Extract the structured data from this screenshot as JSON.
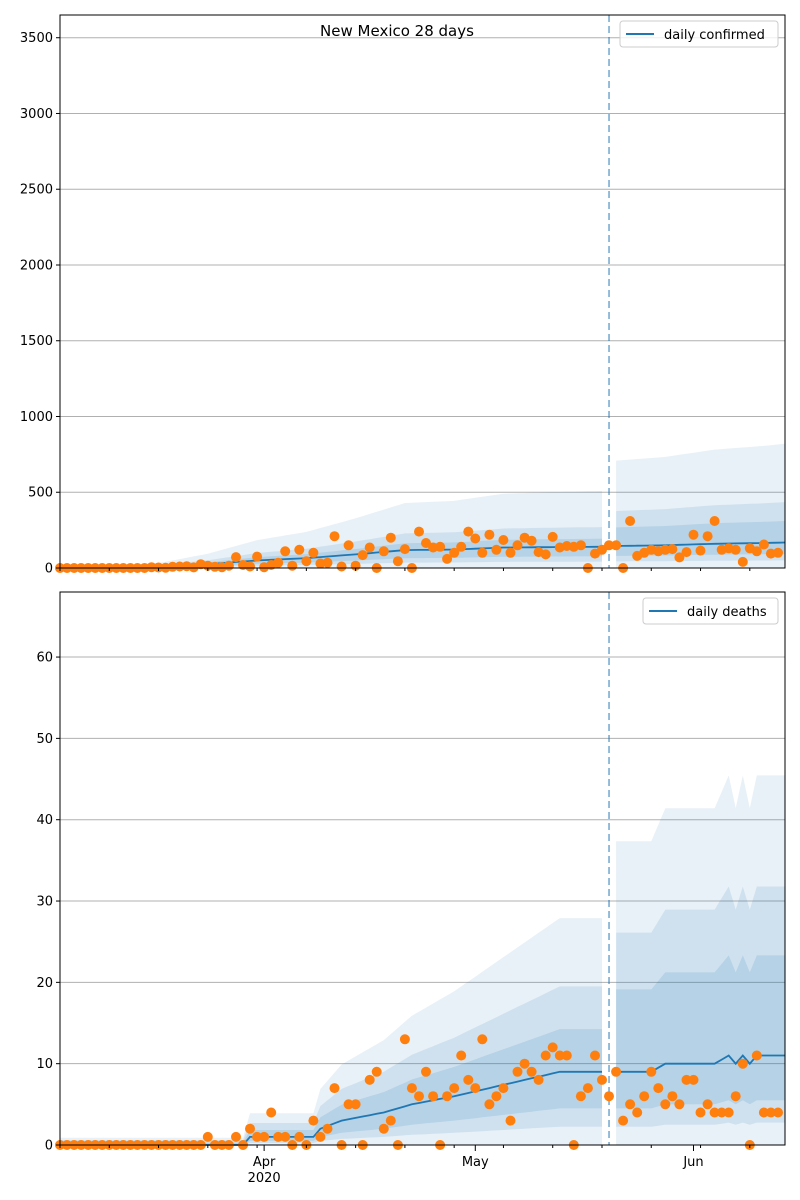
{
  "chart_data": [
    {
      "type": "line",
      "title": "New Mexico 28 days",
      "xlabel": "",
      "ylabel": "",
      "x_range": [
        "2020-03-03",
        "2020-06-14"
      ],
      "ylim": [
        0,
        3650
      ],
      "yticks": [
        0,
        500,
        1000,
        1500,
        2000,
        2500,
        3000,
        3500
      ],
      "grid": "horizontal",
      "legend_position": "top-right",
      "forecast_start": "2020-05-20",
      "series": [
        {
          "name": "daily confirmed",
          "kind": "line",
          "color": "#1f77b4",
          "keys": [
            [
              "2020-03-03",
              0
            ],
            [
              "2020-03-10",
              2
            ],
            [
              "2020-03-17",
              8
            ],
            [
              "2020-03-24",
              25
            ],
            [
              "2020-03-31",
              50
            ],
            [
              "2020-04-07",
              65
            ],
            [
              "2020-04-14",
              90
            ],
            [
              "2020-04-21",
              118
            ],
            [
              "2020-04-28",
              122
            ],
            [
              "2020-05-05",
              135
            ],
            [
              "2020-05-12",
              138
            ],
            [
              "2020-05-19",
              140
            ],
            [
              "2020-05-20",
              140
            ],
            [
              "2020-05-21",
              145
            ],
            [
              "2020-05-28",
              150
            ],
            [
              "2020-06-04",
              160
            ],
            [
              "2020-06-11",
              165
            ],
            [
              "2020-06-14",
              168
            ]
          ]
        },
        {
          "name": "",
          "kind": "scatter",
          "color": "#ff7f0e",
          "start": "2020-03-03",
          "values": [
            0,
            0,
            0,
            0,
            0,
            0,
            0,
            0,
            0,
            0,
            0,
            0,
            0,
            5,
            3,
            2,
            8,
            10,
            12,
            4,
            25,
            15,
            8,
            5,
            15,
            72,
            20,
            10,
            75,
            5,
            20,
            35,
            110,
            15,
            120,
            45,
            100,
            30,
            35,
            210,
            10,
            150,
            15,
            85,
            135,
            0,
            110,
            200,
            45,
            125,
            0,
            240,
            165,
            135,
            140,
            60,
            100,
            140,
            240,
            195,
            100,
            220,
            120,
            185,
            100,
            150,
            200,
            180,
            105,
            90,
            205,
            135,
            145,
            140,
            150,
            0,
            95,
            120,
            150,
            150,
            0,
            310,
            80,
            100,
            120,
            110,
            120,
            125,
            70,
            105,
            220,
            115,
            210,
            310,
            120,
            130,
            120,
            40,
            130,
            110,
            155,
            95,
            100
          ]
        }
      ]
    },
    {
      "type": "line",
      "title": "",
      "xlabel": "",
      "ylabel": "",
      "x_range": [
        "2020-03-03",
        "2020-06-14"
      ],
      "ylim": [
        0,
        68
      ],
      "yticks": [
        0,
        10,
        20,
        30,
        40,
        50,
        60
      ],
      "xticks": [
        {
          "date": "2020-04-01",
          "label": "Apr",
          "sublabel": "2020"
        },
        {
          "date": "2020-05-01",
          "label": "May",
          "sublabel": ""
        },
        {
          "date": "2020-06-01",
          "label": "Jun",
          "sublabel": ""
        }
      ],
      "grid": "horizontal",
      "legend_position": "top-right",
      "forecast_start": "2020-05-20",
      "series": [
        {
          "name": "daily deaths",
          "kind": "line",
          "color": "#1f77b4",
          "keys": [
            [
              "2020-03-03",
              0
            ],
            [
              "2020-03-29",
              0
            ],
            [
              "2020-03-30",
              1
            ],
            [
              "2020-04-08",
              1
            ],
            [
              "2020-04-09",
              2
            ],
            [
              "2020-04-12",
              3
            ],
            [
              "2020-04-18",
              4
            ],
            [
              "2020-04-22",
              5
            ],
            [
              "2020-04-28",
              6
            ],
            [
              "2020-05-03",
              7
            ],
            [
              "2020-05-08",
              8
            ],
            [
              "2020-05-13",
              9
            ],
            [
              "2020-05-20",
              9
            ],
            [
              "2020-05-26",
              9
            ],
            [
              "2020-05-28",
              10
            ],
            [
              "2020-06-04",
              10
            ],
            [
              "2020-06-06",
              11
            ],
            [
              "2020-06-07",
              10
            ],
            [
              "2020-06-08",
              11
            ],
            [
              "2020-06-09",
              10
            ],
            [
              "2020-06-10",
              11
            ],
            [
              "2020-06-14",
              11
            ]
          ]
        },
        {
          "name": "",
          "kind": "scatter",
          "color": "#ff7f0e",
          "start": "2020-03-03",
          "values": [
            0,
            0,
            0,
            0,
            0,
            0,
            0,
            0,
            0,
            0,
            0,
            0,
            0,
            0,
            0,
            0,
            0,
            0,
            0,
            0,
            0,
            1,
            0,
            0,
            0,
            1,
            0,
            2,
            1,
            1,
            4,
            1,
            1,
            0,
            1,
            0,
            3,
            1,
            2,
            7,
            0,
            5,
            5,
            0,
            8,
            9,
            2,
            3,
            0,
            13,
            7,
            6,
            9,
            6,
            0,
            6,
            7,
            11,
            8,
            7,
            13,
            5,
            6,
            7,
            3,
            9,
            10,
            9,
            8,
            11,
            12,
            11,
            11,
            0,
            6,
            7,
            11,
            8,
            6,
            9,
            3,
            5,
            4,
            6,
            9,
            7,
            5,
            6,
            5,
            8,
            8,
            4,
            5,
            4,
            4,
            4,
            6,
            10,
            0,
            11,
            4,
            4,
            4
          ]
        }
      ]
    }
  ]
}
